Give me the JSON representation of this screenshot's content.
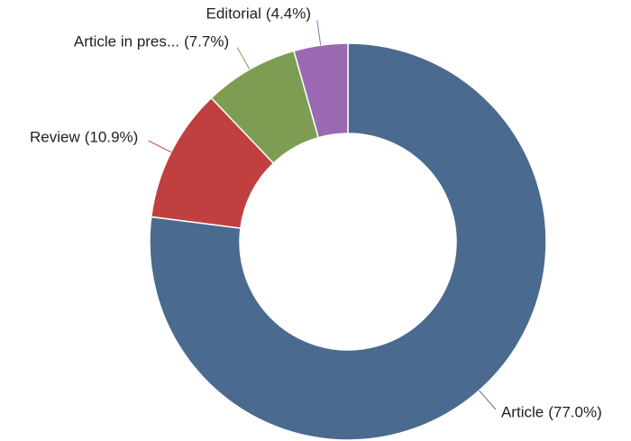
{
  "chart_data": {
    "type": "donut",
    "categories": [
      "Article",
      "Review",
      "Article in pres...",
      "Editorial"
    ],
    "values": [
      77.0,
      10.9,
      7.7,
      4.4
    ],
    "value_labels": [
      "(77.0%)",
      "(10.9%)",
      "(7.7%)",
      "(4.4%)"
    ],
    "colors": [
      "#4a6a8f",
      "#c0403f",
      "#7d9e52",
      "#9b69b1"
    ]
  }
}
